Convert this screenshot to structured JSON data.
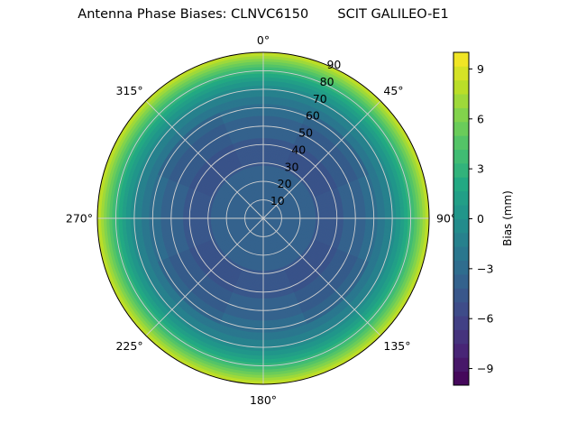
{
  "chart_data": {
    "type": "polar-heatmap",
    "title": "Antenna Phase Biases: CLNVC6150       SCIT GALILEO-E1",
    "radial_axis": {
      "range": [
        0,
        90
      ],
      "ticks": [
        "10",
        "20",
        "30",
        "40",
        "50",
        "60",
        "70",
        "80",
        "90"
      ]
    },
    "angular_axis": {
      "direction": "clockwise",
      "zero": "top",
      "ticks": [
        "0°",
        "45°",
        "90°",
        "135°",
        "180°",
        "225°",
        "270°",
        "315°"
      ]
    },
    "grid": true,
    "colorbar": {
      "label": "Bias (mm)",
      "range": [
        -10,
        10
      ],
      "ticks": [
        "−9",
        "−6",
        "−3",
        "0",
        "3",
        "6",
        "9"
      ],
      "levels": 24,
      "colormap": "viridis"
    },
    "bias_profile": {
      "zenith_angle": [
        0,
        10,
        20,
        30,
        40,
        50,
        60,
        70,
        80,
        90
      ],
      "bias_mm": [
        -3.6,
        -3.7,
        -4.0,
        -4.2,
        -4.3,
        -3.9,
        -2.9,
        -0.8,
        3.0,
        8.6
      ]
    }
  },
  "colors": {
    "grid": "#d0d0d0",
    "frame": "#000000"
  }
}
